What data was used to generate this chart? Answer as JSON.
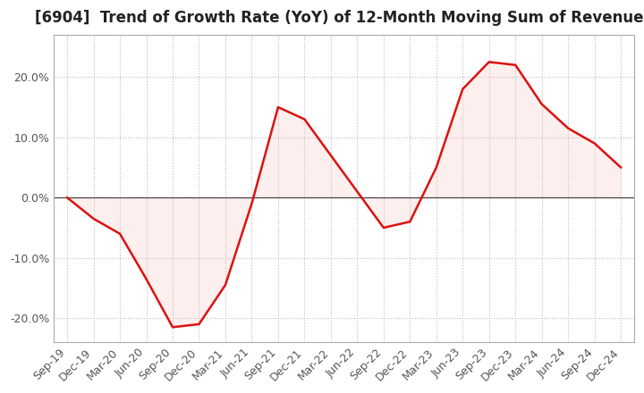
{
  "title": "[6904]  Trend of Growth Rate (YoY) of 12-Month Moving Sum of Revenues",
  "title_fontsize": 12,
  "background_color": "#ffffff",
  "line_color": "#dd1111",
  "fill_color": "#f5c0b8",
  "x_labels": [
    "Sep-19",
    "Dec-19",
    "Mar-20",
    "Jun-20",
    "Sep-20",
    "Dec-20",
    "Mar-21",
    "Jun-21",
    "Sep-21",
    "Dec-21",
    "Mar-22",
    "Jun-22",
    "Sep-22",
    "Dec-22",
    "Mar-23",
    "Jun-23",
    "Sep-23",
    "Dec-23",
    "Mar-24",
    "Jun-24",
    "Sep-24",
    "Dec-24"
  ],
  "y_values": [
    0.0,
    -3.5,
    -6.0,
    -13.5,
    -21.5,
    -21.0,
    -14.5,
    -1.0,
    15.0,
    13.0,
    7.0,
    1.0,
    -5.0,
    -4.0,
    5.0,
    18.0,
    22.5,
    22.0,
    15.5,
    11.5,
    9.0,
    5.0
  ],
  "ylim": [
    -24,
    27
  ],
  "yticks": [
    -20,
    -10,
    0,
    10,
    20
  ],
  "yticklabels": [
    "-20.0%",
    "-10.0%",
    "0.0%",
    "10.0%",
    "20.0%"
  ],
  "grid_color": "#bbbbbb",
  "axis_color": "#555555",
  "tick_color": "#555555",
  "tick_fontsize": 9,
  "zero_line_color": "#444444"
}
